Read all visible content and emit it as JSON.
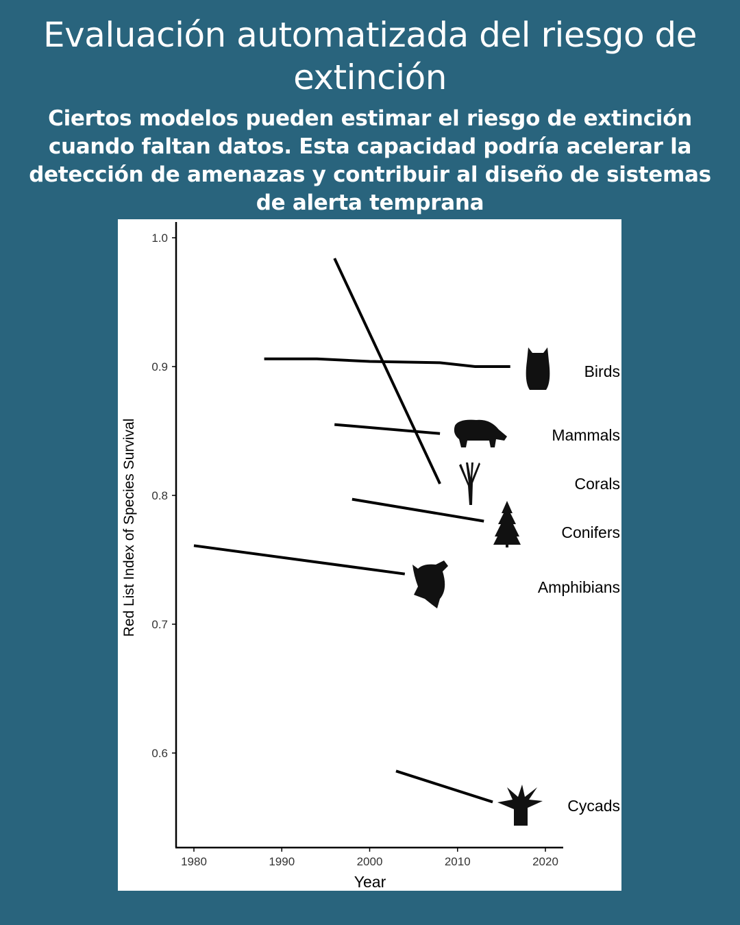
{
  "header": {
    "title": "Evaluación automatizada del riesgo de extinción",
    "subtitle": "Ciertos modelos pueden estimar el riesgo de extinción cuando faltan datos. Esta capacidad podría acelerar la detección de amenazas y contribuir al diseño de sistemas de alerta temprana"
  },
  "chart_data": {
    "type": "line",
    "title": "",
    "xlabel": "Year",
    "ylabel": "Red List Index of Species Survival",
    "xlim": [
      1978,
      2022
    ],
    "ylim": [
      0.53,
      1.01
    ],
    "xticks": [
      "1980",
      "1990",
      "2000",
      "2010",
      "2020"
    ],
    "yticks": [
      "0.6",
      "0.7",
      "0.8",
      "0.9",
      "1.0"
    ],
    "grid": false,
    "series": [
      {
        "name": "Birds",
        "icon": "owl-icon",
        "x": [
          1988,
          1994,
          2000,
          2008,
          2012,
          2016
        ],
        "y": [
          0.906,
          0.906,
          0.904,
          0.903,
          0.9,
          0.9
        ]
      },
      {
        "name": "Mammals",
        "icon": "rhino-icon",
        "x": [
          1996,
          2008
        ],
        "y": [
          0.855,
          0.848
        ]
      },
      {
        "name": "Corals",
        "icon": "coral-icon",
        "x": [
          1996,
          2008
        ],
        "y": [
          0.984,
          0.809
        ]
      },
      {
        "name": "Conifers",
        "icon": "conifer-icon",
        "x": [
          1998,
          2013
        ],
        "y": [
          0.797,
          0.78
        ]
      },
      {
        "name": "Amphibians",
        "icon": "frog-icon",
        "x": [
          1980,
          2004
        ],
        "y": [
          0.761,
          0.739
        ]
      },
      {
        "name": "Cycads",
        "icon": "cycad-icon",
        "x": [
          2003,
          2014
        ],
        "y": [
          0.586,
          0.562
        ]
      }
    ]
  }
}
